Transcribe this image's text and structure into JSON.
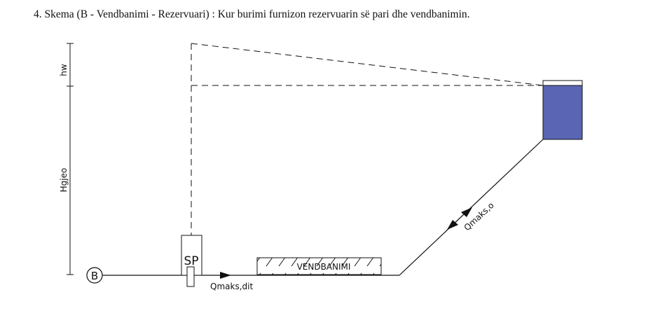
{
  "heading": "4. Skema (B - Vendbanimi - Rezervuari) : Kur burimi furnizon rezervuarin së pari dhe vendbanimin.",
  "diagram": {
    "source_label": "B",
    "pump_label": "SP",
    "settlement_label": "VENDBANIMI",
    "flow_main_label": "Qmaks,dit",
    "flow_reservoir_label": "Qmaks,o",
    "dim_hw_label": "hw",
    "dim_hgjeo_label": "Hgjeo",
    "reservoir_water_color": "#5a65b4"
  }
}
